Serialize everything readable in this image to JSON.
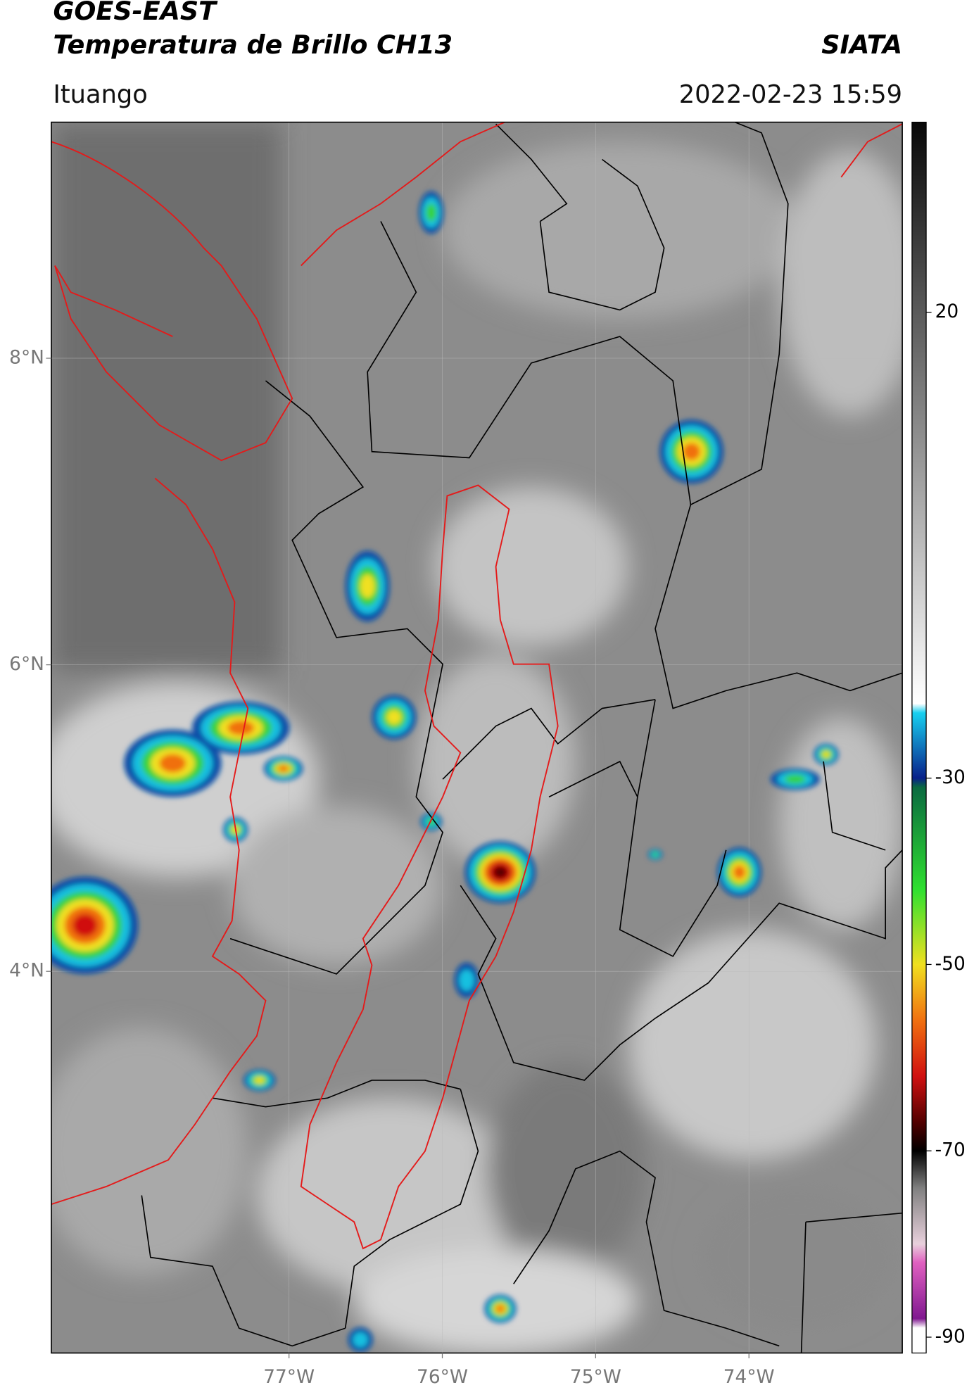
{
  "header": {
    "title": "GOES-EAST",
    "subtitle": "Temperatura de Brillo CH13",
    "brand": "SIATA",
    "location": "Ituango",
    "datetime": "2022-02-23 15:59"
  },
  "map": {
    "xlim": [
      -78.55,
      -73.0
    ],
    "ylim": [
      1.51,
      9.54
    ],
    "xticks": [
      {
        "value": -77,
        "label": "77°W"
      },
      {
        "value": -76,
        "label": "76°W"
      },
      {
        "value": -75,
        "label": "75°W"
      },
      {
        "value": -74,
        "label": "74°W"
      }
    ],
    "yticks": [
      {
        "value": 8,
        "label": "8°N"
      },
      {
        "value": 6,
        "label": "6°N"
      },
      {
        "value": 4,
        "label": "4°N"
      }
    ],
    "grid": true
  },
  "colorbar": {
    "ylim": [
      -91.7,
      40.4
    ],
    "yticks": [
      20,
      -30,
      -50,
      -70,
      -90
    ],
    "stops": [
      {
        "value": 40.4,
        "color": "#080808"
      },
      {
        "value": 20,
        "color": "#5a5a5a"
      },
      {
        "value": 0,
        "color": "#a8a8a8"
      },
      {
        "value": -22,
        "color": "#ffffff"
      },
      {
        "value": -23,
        "color": "#18d0f0"
      },
      {
        "value": -30,
        "color": "#08208a"
      },
      {
        "value": -31,
        "color": "#0a6a40"
      },
      {
        "value": -42,
        "color": "#30e030"
      },
      {
        "value": -50,
        "color": "#f0e020"
      },
      {
        "value": -56,
        "color": "#f07010"
      },
      {
        "value": -62,
        "color": "#d01010"
      },
      {
        "value": -67,
        "color": "#500000"
      },
      {
        "value": -70,
        "color": "#000000"
      },
      {
        "value": -74,
        "color": "#808080"
      },
      {
        "value": -80,
        "color": "#e8d0dc"
      },
      {
        "value": -82,
        "color": "#e060c0"
      },
      {
        "value": -88,
        "color": "#801890"
      },
      {
        "value": -89,
        "color": "#ffffff"
      },
      {
        "value": -91.7,
        "color": "#ffffff"
      }
    ]
  }
}
